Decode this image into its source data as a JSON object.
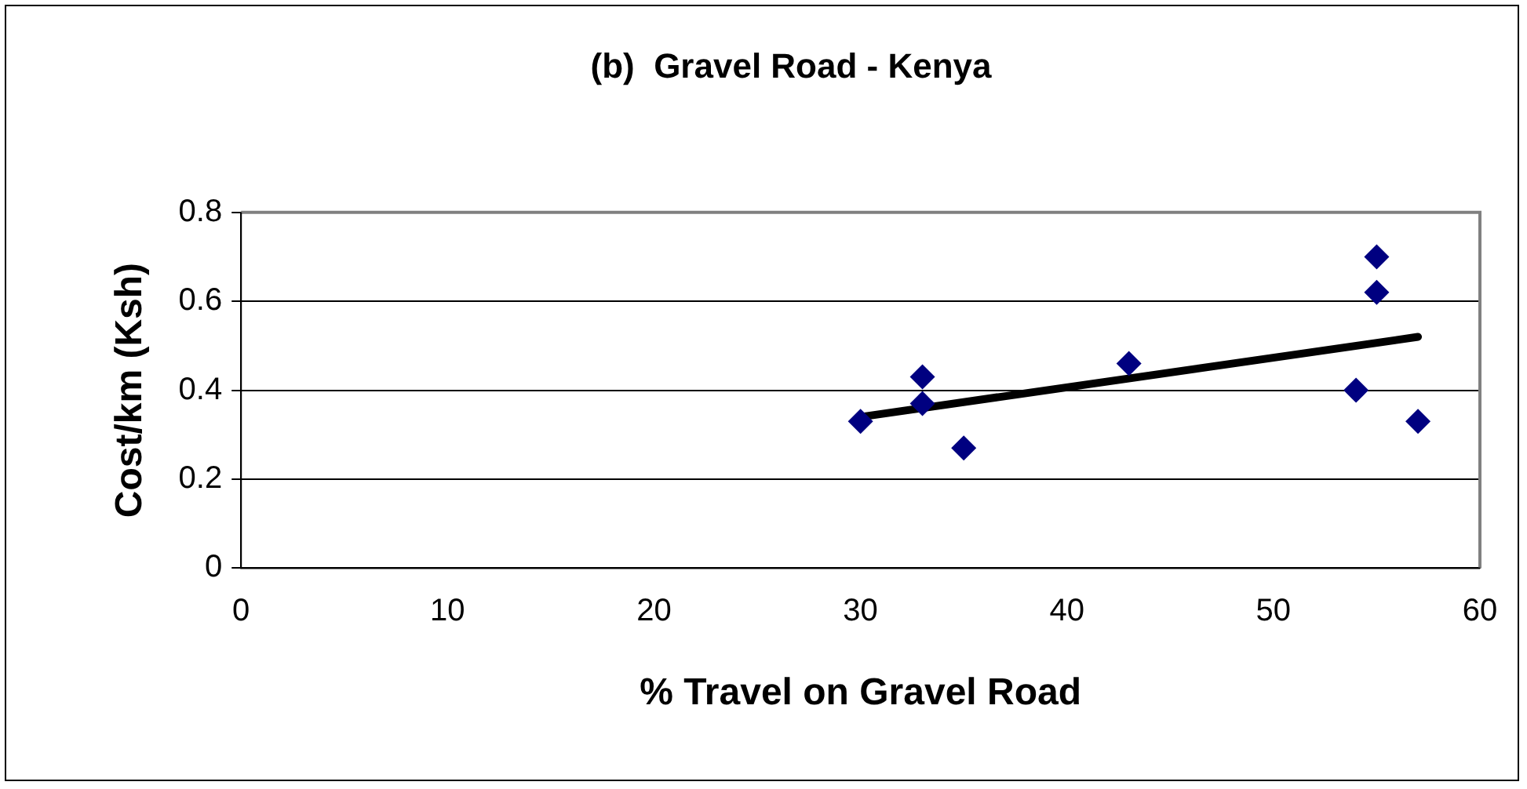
{
  "chart_data": {
    "type": "scatter",
    "title": "(b)  Gravel Road - Kenya",
    "xlabel": "% Travel on Gravel Road",
    "ylabel": "Cost/km (Ksh)",
    "xlim": [
      0,
      60
    ],
    "xticks": [
      0,
      10,
      20,
      30,
      40,
      50,
      60
    ],
    "ylim": [
      0,
      0.8
    ],
    "yticks": [
      0,
      0.2,
      0.4,
      0.6,
      0.8
    ],
    "grid": "y",
    "legend": false,
    "marker": "diamond",
    "series": [
      {
        "color": "#000080",
        "x": [
          30,
          33,
          33,
          35,
          43,
          54,
          55,
          55,
          57
        ],
        "values": [
          0.33,
          0.43,
          0.37,
          0.27,
          0.46,
          0.4,
          0.7,
          0.62,
          0.33
        ]
      },
      {
        "type": "line",
        "color": "#000000",
        "x": [
          30,
          57
        ],
        "values": [
          0.34,
          0.52
        ],
        "marker": "none",
        "line_style": "solid"
      }
    ]
  }
}
